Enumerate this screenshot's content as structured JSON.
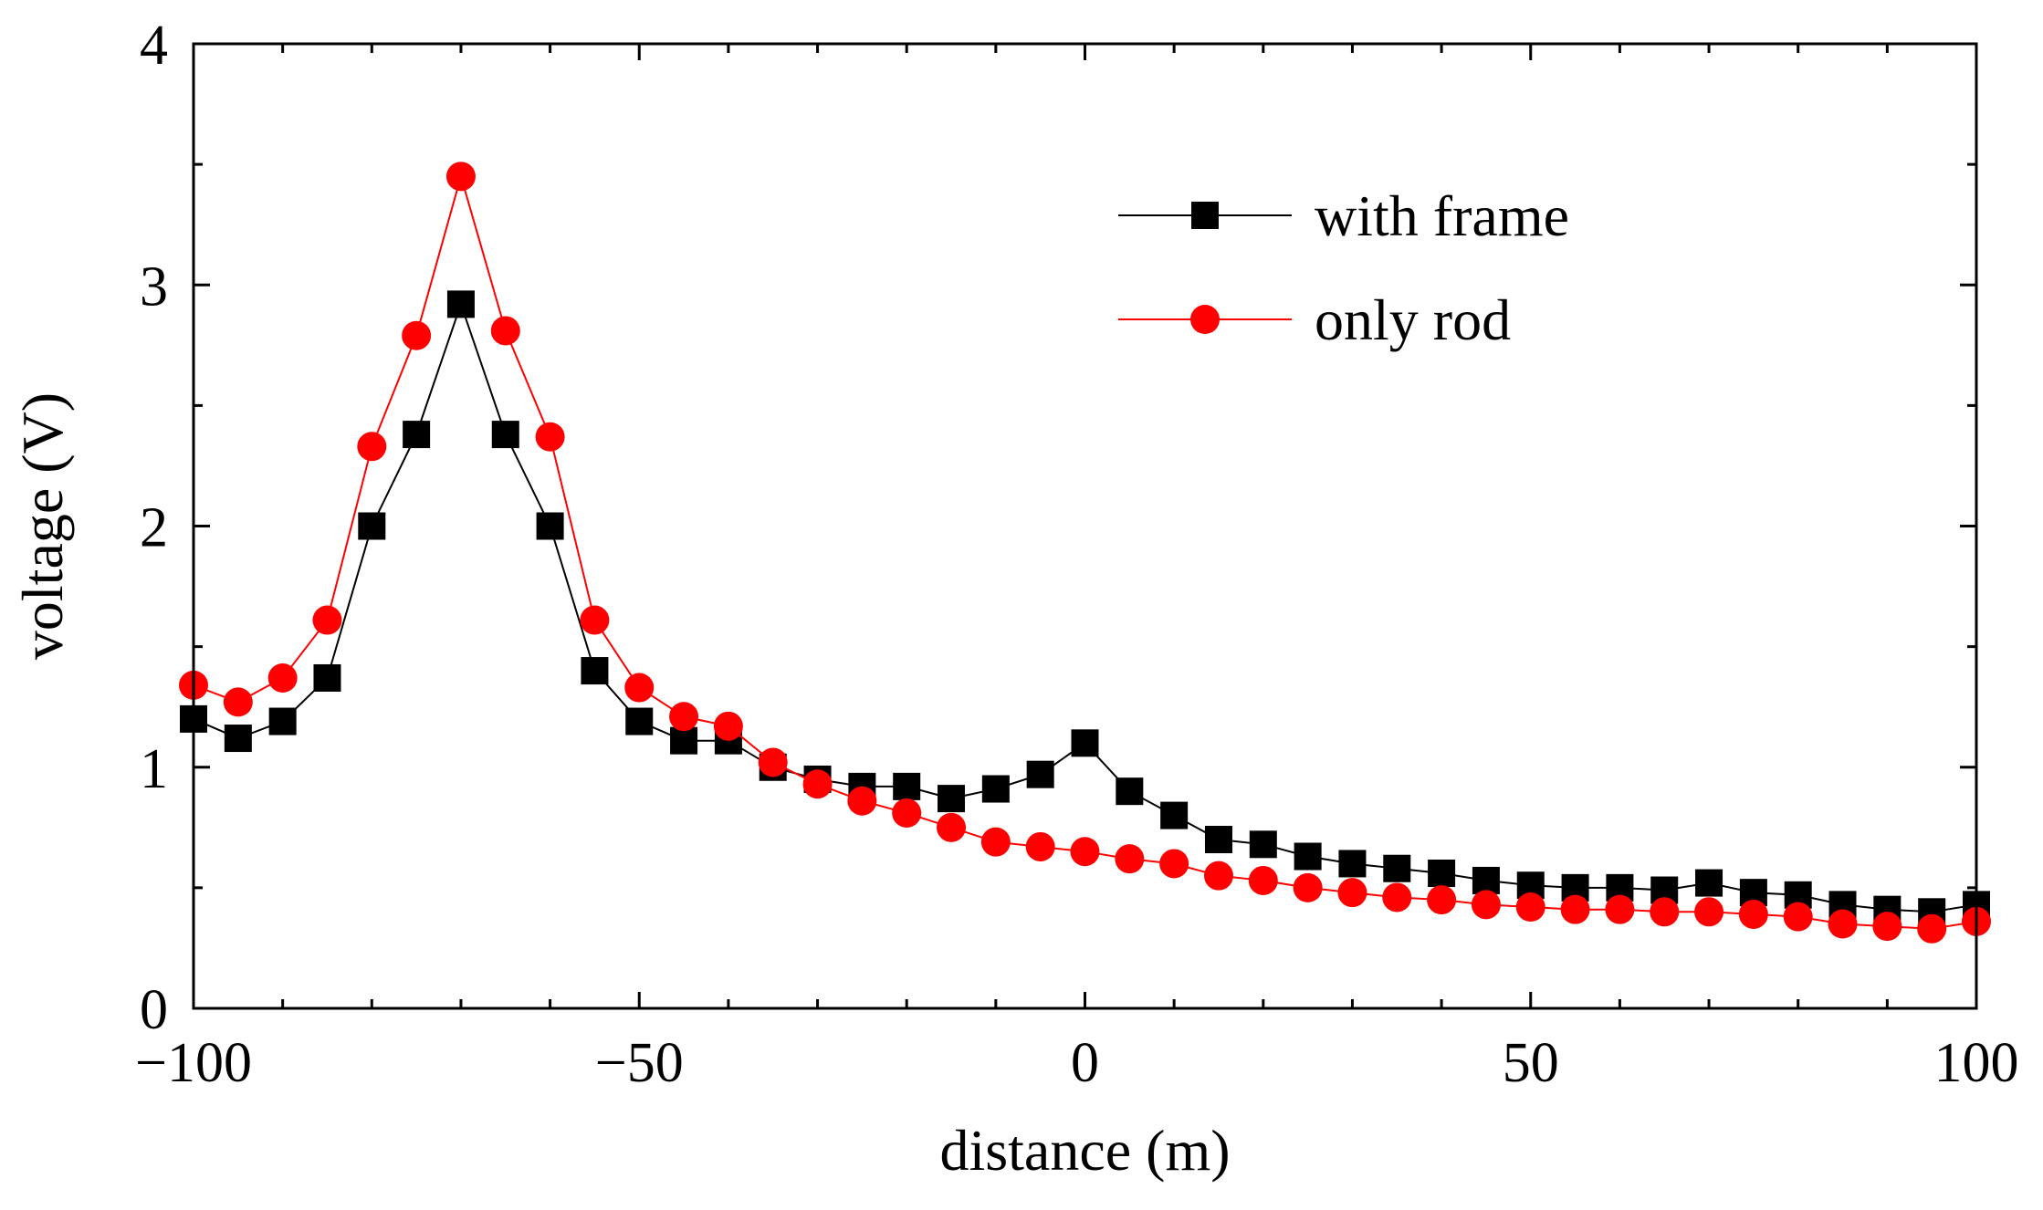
{
  "chart_data": {
    "type": "line",
    "title": "",
    "xlabel": "distance (m)",
    "ylabel": "voltage (V)",
    "xlim": [
      -100,
      100
    ],
    "ylim": [
      0,
      4
    ],
    "x_ticks": [
      -100,
      -50,
      0,
      50,
      100
    ],
    "x_tick_labels": [
      "−100",
      "−50",
      "0",
      "50",
      "100"
    ],
    "y_ticks": [
      0,
      1,
      2,
      3,
      4
    ],
    "y_tick_labels": [
      "0",
      "1",
      "2",
      "3",
      "4"
    ],
    "grid": false,
    "legend_position": "top-right",
    "series": [
      {
        "name": "with frame",
        "color": "#000000",
        "marker": "square",
        "x": [
          -100,
          -95,
          -90,
          -85,
          -80,
          -75,
          -70,
          -65,
          -60,
          -55,
          -50,
          -45,
          -40,
          -35,
          -30,
          -25,
          -20,
          -15,
          -10,
          -5,
          0,
          5,
          10,
          15,
          20,
          25,
          30,
          35,
          40,
          45,
          50,
          55,
          60,
          65,
          70,
          75,
          80,
          85,
          90,
          95,
          100
        ],
        "values": [
          1.2,
          1.12,
          1.19,
          1.37,
          2.0,
          2.38,
          2.92,
          2.38,
          2.0,
          1.4,
          1.19,
          1.11,
          1.11,
          1.0,
          0.95,
          0.92,
          0.92,
          0.87,
          0.91,
          0.97,
          1.1,
          0.9,
          0.8,
          0.7,
          0.68,
          0.63,
          0.6,
          0.58,
          0.56,
          0.53,
          0.51,
          0.5,
          0.5,
          0.49,
          0.52,
          0.48,
          0.47,
          0.43,
          0.41,
          0.4,
          0.43
        ]
      },
      {
        "name": "only rod",
        "color": "#ff0000",
        "marker": "circle",
        "x": [
          -100,
          -95,
          -90,
          -85,
          -80,
          -75,
          -70,
          -65,
          -60,
          -55,
          -50,
          -45,
          -40,
          -35,
          -30,
          -25,
          -20,
          -15,
          -10,
          -5,
          0,
          5,
          10,
          15,
          20,
          25,
          30,
          35,
          40,
          45,
          50,
          55,
          60,
          65,
          70,
          75,
          80,
          85,
          90,
          95,
          100
        ],
        "values": [
          1.34,
          1.27,
          1.37,
          1.61,
          2.33,
          2.79,
          3.45,
          2.81,
          2.37,
          1.61,
          1.33,
          1.21,
          1.17,
          1.02,
          0.93,
          0.86,
          0.81,
          0.75,
          0.69,
          0.67,
          0.65,
          0.62,
          0.6,
          0.55,
          0.53,
          0.5,
          0.48,
          0.46,
          0.45,
          0.43,
          0.42,
          0.41,
          0.41,
          0.4,
          0.4,
          0.39,
          0.38,
          0.35,
          0.34,
          0.33,
          0.36
        ]
      }
    ]
  }
}
